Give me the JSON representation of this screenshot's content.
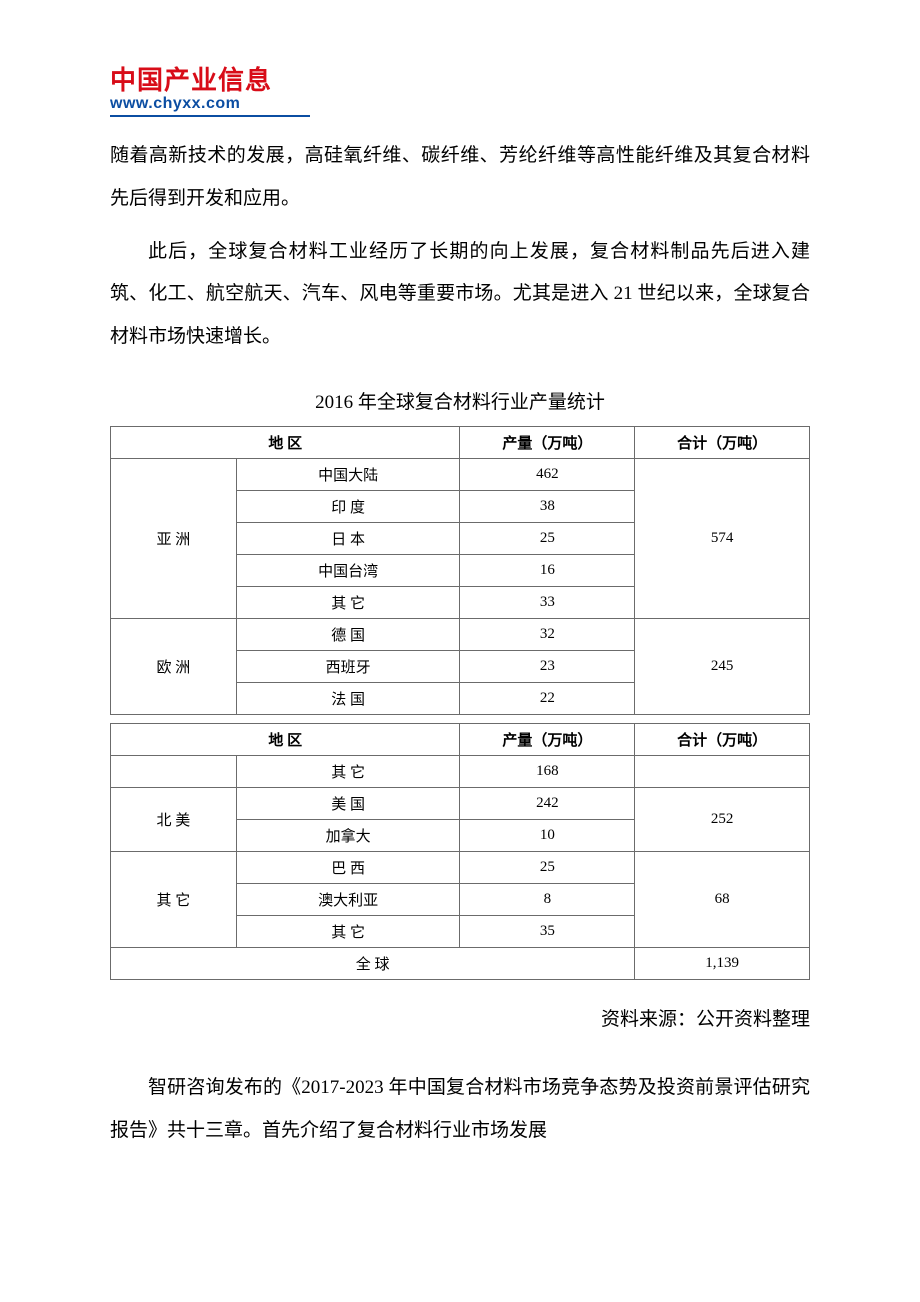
{
  "logo": {
    "cn": "中国产业信息",
    "en": "www.chyxx.com"
  },
  "para1": "随着高新技术的发展，高硅氧纤维、碳纤维、芳纶纤维等高性能纤维及其复合材料先后得到开发和应用。",
  "para2": "此后，全球复合材料工业经历了长期的向上发展，复合材料制品先后进入建筑、化工、航空航天、汽车、风电等重要市场。尤其是进入 21 世纪以来，全球复合材料市场快速增长。",
  "table_title": "2016 年全球复合材料行业产量统计",
  "headers": {
    "region": "地 区",
    "output": "产量（万吨）",
    "total": "合计（万吨）"
  },
  "table1": {
    "asia": {
      "label": "亚 洲",
      "total": "574",
      "rows": [
        {
          "country": "中国大陆",
          "output": "462"
        },
        {
          "country": "印 度",
          "output": "38"
        },
        {
          "country": "日 本",
          "output": "25"
        },
        {
          "country": "中国台湾",
          "output": "16"
        },
        {
          "country": "其 它",
          "output": "33"
        }
      ]
    },
    "europe": {
      "label": "欧 洲",
      "total": "245",
      "rows": [
        {
          "country": "德 国",
          "output": "32"
        },
        {
          "country": "西班牙",
          "output": "23"
        },
        {
          "country": "法 国",
          "output": "22"
        }
      ]
    }
  },
  "table2": {
    "europe_cont": {
      "rows": [
        {
          "country": "其 它",
          "output": "168"
        }
      ]
    },
    "na": {
      "label": "北 美",
      "total": "252",
      "rows": [
        {
          "country": "美 国",
          "output": "242"
        },
        {
          "country": "加拿大",
          "output": "10"
        }
      ]
    },
    "other": {
      "label": "其 它",
      "total": "68",
      "rows": [
        {
          "country": "巴 西",
          "output": "25"
        },
        {
          "country": "澳大利亚",
          "output": "8"
        },
        {
          "country": "其 它",
          "output": "35"
        }
      ]
    },
    "global": {
      "label": "全 球",
      "total": "1,139"
    }
  },
  "source": "资料来源：公开资料整理",
  "para3": "智研咨询发布的《2017-2023 年中国复合材料市场竞争态势及投资前景评估研究报告》共十三章。首先介绍了复合材料行业市场发展",
  "styles": {
    "logo_cn_color": "#d80c18",
    "logo_en_color": "#0b4da2",
    "underline_color": "#0b4da2",
    "text_color": "#000000",
    "border_color": "#6b6b6b",
    "background": "#ffffff",
    "body_fontsize": 19,
    "table_fontsize": 15,
    "line_height": 2.25
  }
}
